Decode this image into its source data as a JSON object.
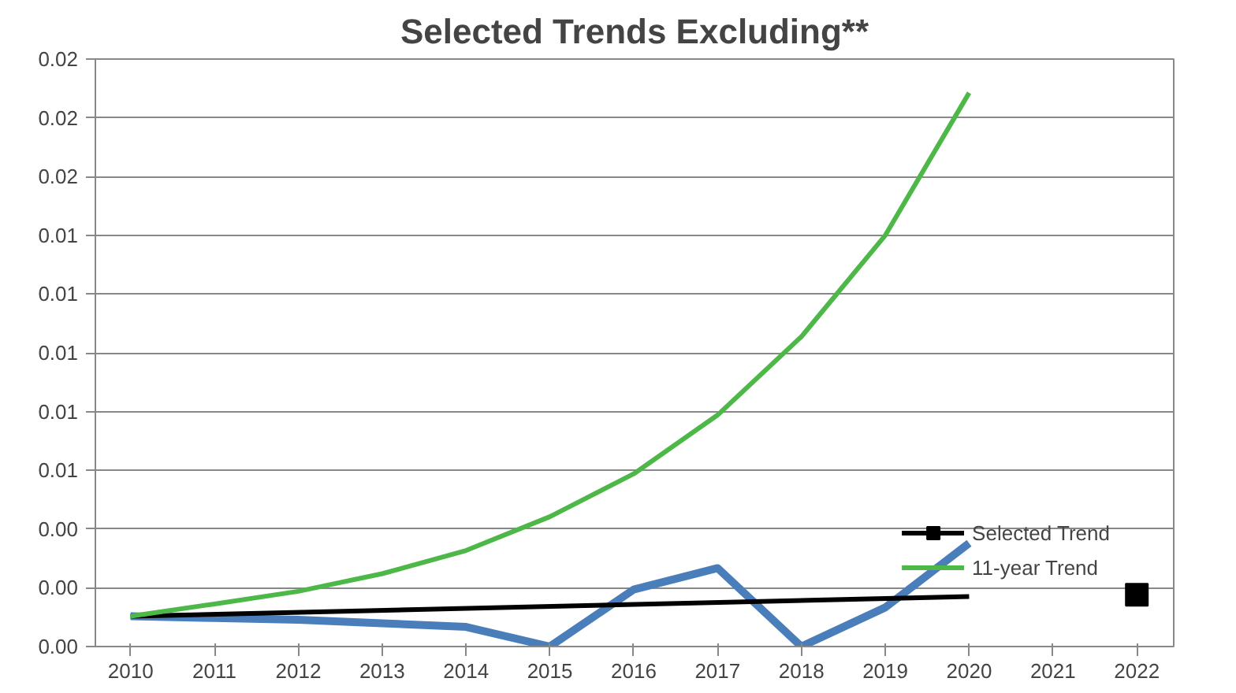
{
  "chart_data": {
    "type": "line",
    "title": "Selected Trends Excluding**",
    "xlim": [
      2009.58,
      2022.44
    ],
    "xticks": [
      2010,
      2011,
      2012,
      2013,
      2014,
      2015,
      2016,
      2017,
      2018,
      2019,
      2020,
      2021,
      2022
    ],
    "ylim": [
      0,
      0.02
    ],
    "yticks": [
      {
        "value": 0,
        "label": "0.00"
      },
      {
        "value": 0.002,
        "label": "0.00"
      },
      {
        "value": 0.004,
        "label": "0.00"
      },
      {
        "value": 0.006,
        "label": "0.01"
      },
      {
        "value": 0.008,
        "label": "0.01"
      },
      {
        "value": 0.01,
        "label": "0.01"
      },
      {
        "value": 0.012,
        "label": "0.01"
      },
      {
        "value": 0.014,
        "label": "0.01"
      },
      {
        "value": 0.016,
        "label": "0.02"
      },
      {
        "value": 0.018,
        "label": "0.02"
      },
      {
        "value": 0.02,
        "label": "0.02"
      }
    ],
    "grid": "y",
    "legend": "bottom right",
    "series": [
      {
        "color": "#4a7ebb",
        "x": [
          2010,
          2011,
          2012,
          2013,
          2014,
          2015,
          2016,
          2017,
          2018,
          2019,
          2020
        ],
        "values": [
          0.00103,
          0.00097,
          0.00091,
          0.00079,
          0.00067,
          0,
          0.00194,
          0.00267,
          0,
          0.00133,
          0.00352
        ]
      },
      {
        "name": "Selected Trend",
        "color": "#000000",
        "x": [
          2010,
          2020
        ],
        "values": [
          0.00103,
          0.0017
        ]
      },
      {
        "type": "scatter",
        "marker": "square",
        "color": "#000000",
        "x": [
          2022
        ],
        "values": [
          0.00176
        ]
      },
      {
        "name": "11-year Trend",
        "color": "#4db848",
        "x": [
          2010,
          2011,
          2012,
          2013,
          2014,
          2015,
          2016,
          2017,
          2018,
          2019,
          2020
        ],
        "values": [
          0.00103,
          0.00145,
          0.00188,
          0.00248,
          0.00327,
          0.00442,
          0.00588,
          0.00788,
          0.01055,
          0.014,
          0.01885
        ]
      }
    ]
  }
}
